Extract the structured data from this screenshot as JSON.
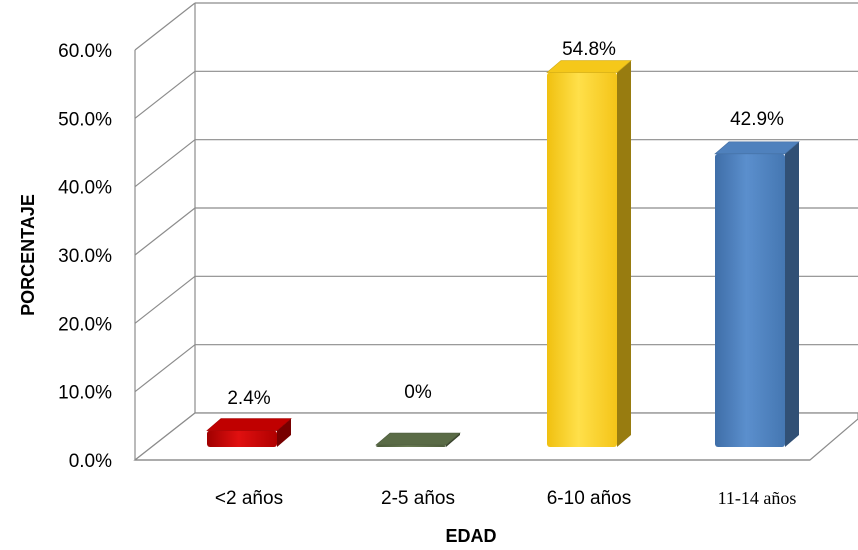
{
  "chart_data": {
    "type": "bar",
    "categories": [
      "<2 años",
      "2-5 años",
      "6-10 años",
      "11-14 años"
    ],
    "values": [
      2.4,
      0,
      54.8,
      42.9
    ],
    "data_labels": [
      "2.4%",
      "0%",
      "54.8%",
      "42.9%"
    ],
    "colors": [
      "#c00000",
      "#5a6b46",
      "#f5c81a",
      "#4f81bd"
    ],
    "xlabel": "EDAD",
    "ylabel": "PORCENTAJE",
    "ylim": [
      0,
      60
    ],
    "yticks": [
      "0.0%",
      "10.0%",
      "20.0%",
      "30.0%",
      "40.0%",
      "50.0%",
      "60.0%"
    ],
    "grid": true,
    "style": "3d-column"
  }
}
